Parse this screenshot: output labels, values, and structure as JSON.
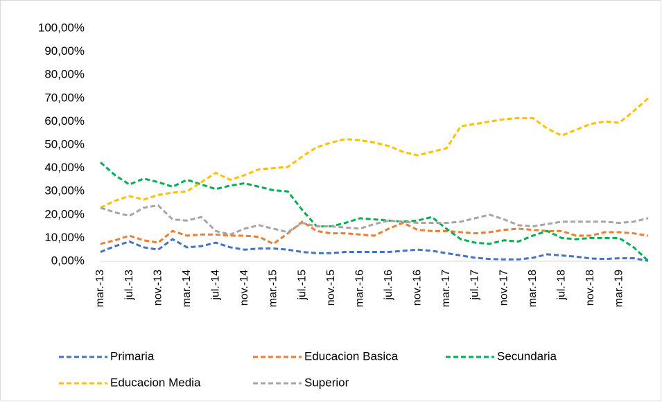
{
  "chart_data": {
    "type": "line",
    "categories": [
      "mar.-13",
      null,
      "jul.-13",
      null,
      "nov.-13",
      null,
      "mar.-14",
      null,
      "jul.-14",
      null,
      "nov.-14",
      null,
      "mar.-15",
      null,
      "jul.-15",
      null,
      "nov.-15",
      null,
      "mar.-16",
      null,
      "jul.-16",
      null,
      "nov.-16",
      null,
      "mar.-17",
      null,
      "jul.-17",
      null,
      "nov.-17",
      null,
      "mar.-18",
      null,
      "jul.-18",
      null,
      "nov.-18",
      null,
      "mar.-19",
      null,
      null
    ],
    "series": [
      {
        "name": "Primaria",
        "color": "#4472c4",
        "values": [
          4,
          6.5,
          8.5,
          6,
          5,
          9.5,
          6,
          6.5,
          8,
          6,
          5,
          5.5,
          5.5,
          5,
          4,
          3.5,
          3.5,
          4,
          4,
          4,
          4,
          4.5,
          5,
          4.5,
          3.5,
          2.5,
          1.5,
          1,
          0.8,
          0.8,
          1.5,
          3,
          2.5,
          2,
          1.2,
          1,
          1.3,
          1.3,
          0.2
        ]
      },
      {
        "name": "Educacion Basica",
        "color": "#ed7d31",
        "values": [
          7.5,
          9,
          11,
          9,
          8,
          13,
          11,
          11.5,
          11.5,
          11,
          11,
          10.5,
          7.5,
          12,
          17,
          13,
          12,
          12,
          11.5,
          11,
          14,
          16.5,
          13.5,
          13,
          13,
          12.5,
          12,
          12.5,
          13.5,
          14,
          13.5,
          13,
          13,
          11,
          11,
          12.5,
          12.5,
          12,
          11
        ]
      },
      {
        "name": "Secundaria",
        "color": "#00b050",
        "values": [
          42.5,
          37,
          33,
          35.5,
          34,
          32,
          35,
          33,
          31,
          32.5,
          33.5,
          32,
          30.5,
          30,
          22,
          15,
          15,
          16.5,
          18.5,
          18,
          17.5,
          17,
          17.5,
          19,
          14,
          9.5,
          8,
          7.5,
          9,
          8.5,
          11,
          13,
          10,
          9.5,
          10,
          10,
          10,
          6,
          0.2
        ]
      },
      {
        "name": "Educacion Media",
        "color": "#ffc000",
        "values": [
          23,
          26,
          28,
          26.5,
          28.5,
          29.5,
          30,
          34,
          38,
          35,
          37,
          39.5,
          40,
          40.5,
          45,
          49,
          51,
          52.5,
          52,
          51,
          49.5,
          47,
          45.5,
          47,
          48.5,
          58,
          59,
          60,
          61,
          61.5,
          61.5,
          57,
          54,
          56.5,
          59,
          60,
          59.5,
          64.5,
          70
        ]
      },
      {
        "name": "Superior",
        "color": "#a5a5a5",
        "values": [
          23,
          21,
          19.5,
          23,
          24,
          18,
          17.5,
          19,
          13,
          11.5,
          14,
          15.5,
          14,
          12.5,
          16.5,
          15,
          15,
          14.5,
          14,
          16,
          17.5,
          17,
          16.5,
          16.5,
          16.5,
          17,
          18.5,
          20,
          18,
          15.5,
          15,
          16,
          17,
          17,
          17,
          17,
          16.5,
          17,
          18.5
        ]
      }
    ],
    "ylim": [
      0,
      100
    ],
    "yticks": [
      {
        "value": 0,
        "label": "0,00%"
      },
      {
        "value": 10,
        "label": "10,00%"
      },
      {
        "value": 20,
        "label": "20,00%"
      },
      {
        "value": 30,
        "label": "30,00%"
      },
      {
        "value": 40,
        "label": "40,00%"
      },
      {
        "value": 50,
        "label": "50,00%"
      },
      {
        "value": 60,
        "label": "60,00%"
      },
      {
        "value": 70,
        "label": "70,00%"
      },
      {
        "value": 80,
        "label": "80,00%"
      },
      {
        "value": 90,
        "label": "90,00%"
      },
      {
        "value": 100,
        "label": "100,00%"
      }
    ],
    "grid": false,
    "legend": "bottom"
  }
}
